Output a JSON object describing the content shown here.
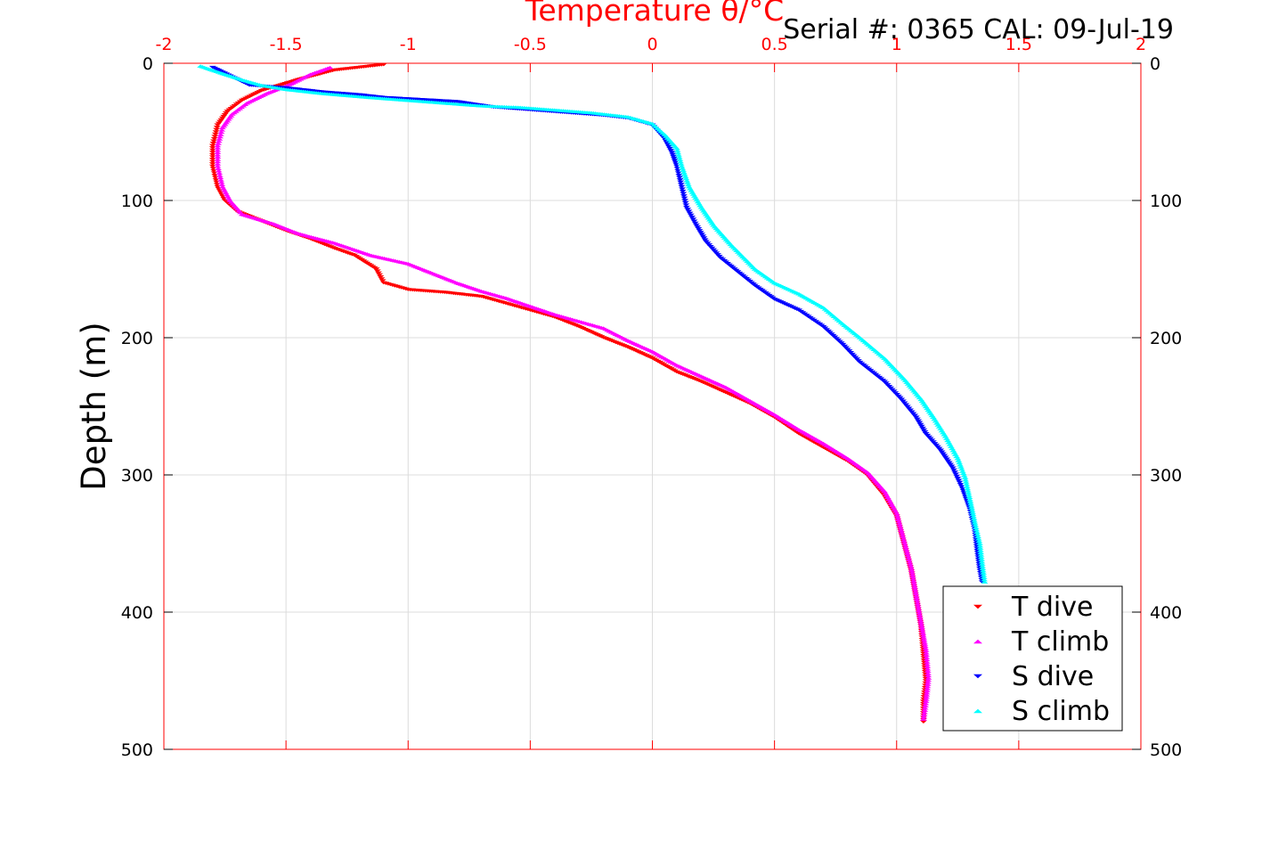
{
  "chart_data": {
    "type": "scatter",
    "title": "Temperature θ/°C",
    "subtitle": "Serial #: 0365  CAL: 09-Jul-19",
    "xlabel": "Temperature θ/°C",
    "ylabel": "Depth (m)",
    "xlim": [
      -2,
      2
    ],
    "ylim": [
      0,
      500
    ],
    "y_reversed": true,
    "grid": true,
    "legend_position": "bottom-right",
    "x_ticks": [
      "-2",
      "-1.5",
      "-1",
      "-0.5",
      "0",
      "0.5",
      "1",
      "1.5",
      "2"
    ],
    "y_ticks": [
      "0",
      "100",
      "200",
      "300",
      "400",
      "500"
    ],
    "series": [
      {
        "name": "T dive",
        "marker": "triangle-down",
        "color": "#ff0000",
        "points": [
          [
            -1.1,
            1
          ],
          [
            -1.3,
            5
          ],
          [
            -1.45,
            12
          ],
          [
            -1.6,
            20
          ],
          [
            -1.68,
            27
          ],
          [
            -1.74,
            35
          ],
          [
            -1.78,
            45
          ],
          [
            -1.8,
            60
          ],
          [
            -1.8,
            75
          ],
          [
            -1.78,
            90
          ],
          [
            -1.75,
            100
          ],
          [
            -1.7,
            108
          ],
          [
            -1.6,
            115
          ],
          [
            -1.5,
            122
          ],
          [
            -1.4,
            128
          ],
          [
            -1.3,
            135
          ],
          [
            -1.22,
            140
          ],
          [
            -1.13,
            150
          ],
          [
            -1.1,
            160
          ],
          [
            -1.0,
            165
          ],
          [
            -0.85,
            167
          ],
          [
            -0.7,
            170
          ],
          [
            -0.6,
            175
          ],
          [
            -0.5,
            180
          ],
          [
            -0.4,
            185
          ],
          [
            -0.3,
            192
          ],
          [
            -0.2,
            200
          ],
          [
            -0.1,
            207
          ],
          [
            0.0,
            215
          ],
          [
            0.1,
            225
          ],
          [
            0.2,
            232
          ],
          [
            0.3,
            240
          ],
          [
            0.4,
            248
          ],
          [
            0.5,
            258
          ],
          [
            0.6,
            270
          ],
          [
            0.7,
            280
          ],
          [
            0.8,
            290
          ],
          [
            0.88,
            300
          ],
          [
            0.95,
            315
          ],
          [
            1.0,
            330
          ],
          [
            1.03,
            350
          ],
          [
            1.06,
            370
          ],
          [
            1.08,
            390
          ],
          [
            1.1,
            410
          ],
          [
            1.11,
            430
          ],
          [
            1.12,
            450
          ],
          [
            1.11,
            465
          ],
          [
            1.11,
            480
          ]
        ]
      },
      {
        "name": "T climb",
        "marker": "triangle-up",
        "color": "#ff00ff",
        "points": [
          [
            -1.32,
            3
          ],
          [
            -1.4,
            8
          ],
          [
            -1.48,
            15
          ],
          [
            -1.58,
            22
          ],
          [
            -1.66,
            29
          ],
          [
            -1.72,
            37
          ],
          [
            -1.76,
            47
          ],
          [
            -1.78,
            60
          ],
          [
            -1.78,
            75
          ],
          [
            -1.76,
            90
          ],
          [
            -1.73,
            100
          ],
          [
            -1.68,
            110
          ],
          [
            -1.55,
            117
          ],
          [
            -1.45,
            124
          ],
          [
            -1.3,
            131
          ],
          [
            -1.15,
            140
          ],
          [
            -1.0,
            146
          ],
          [
            -0.9,
            153
          ],
          [
            -0.8,
            160
          ],
          [
            -0.7,
            166
          ],
          [
            -0.6,
            171
          ],
          [
            -0.5,
            177
          ],
          [
            -0.4,
            183
          ],
          [
            -0.3,
            188
          ],
          [
            -0.2,
            193
          ],
          [
            -0.1,
            202
          ],
          [
            0.0,
            210
          ],
          [
            0.1,
            220
          ],
          [
            0.2,
            228
          ],
          [
            0.3,
            236
          ],
          [
            0.4,
            246
          ],
          [
            0.5,
            256
          ],
          [
            0.6,
            267
          ],
          [
            0.7,
            277
          ],
          [
            0.8,
            288
          ],
          [
            0.88,
            298
          ],
          [
            0.95,
            312
          ],
          [
            1.0,
            328
          ],
          [
            1.03,
            348
          ],
          [
            1.06,
            368
          ],
          [
            1.08,
            388
          ],
          [
            1.1,
            408
          ],
          [
            1.12,
            428
          ],
          [
            1.13,
            448
          ],
          [
            1.12,
            465
          ],
          [
            1.11,
            478
          ]
        ]
      },
      {
        "name": "S dive",
        "marker": "triangle-down",
        "color": "#0000ff",
        "points": [
          [
            -1.8,
            3
          ],
          [
            -1.72,
            10
          ],
          [
            -1.65,
            16
          ],
          [
            -1.5,
            18
          ],
          [
            -1.35,
            21
          ],
          [
            -1.2,
            23
          ],
          [
            -1.1,
            25
          ],
          [
            -0.9,
            27
          ],
          [
            -0.8,
            28
          ],
          [
            -0.65,
            32
          ],
          [
            -0.5,
            34
          ],
          [
            -0.35,
            36
          ],
          [
            -0.2,
            38
          ],
          [
            -0.1,
            40
          ],
          [
            0.0,
            45
          ],
          [
            0.05,
            55
          ],
          [
            0.08,
            65
          ],
          [
            0.1,
            75
          ],
          [
            0.12,
            90
          ],
          [
            0.14,
            105
          ],
          [
            0.18,
            118
          ],
          [
            0.22,
            130
          ],
          [
            0.28,
            142
          ],
          [
            0.35,
            152
          ],
          [
            0.42,
            162
          ],
          [
            0.5,
            172
          ],
          [
            0.6,
            180
          ],
          [
            0.7,
            192
          ],
          [
            0.78,
            205
          ],
          [
            0.85,
            218
          ],
          [
            0.95,
            232
          ],
          [
            1.02,
            245
          ],
          [
            1.08,
            258
          ],
          [
            1.12,
            270
          ],
          [
            1.18,
            282
          ],
          [
            1.23,
            295
          ],
          [
            1.27,
            310
          ],
          [
            1.3,
            325
          ],
          [
            1.32,
            340
          ],
          [
            1.33,
            355
          ],
          [
            1.34,
            368
          ],
          [
            1.35,
            378
          ]
        ]
      },
      {
        "name": "S climb",
        "marker": "triangle-up",
        "color": "#00ffff",
        "points": [
          [
            -1.85,
            2
          ],
          [
            -1.8,
            5
          ],
          [
            -1.75,
            8
          ],
          [
            -1.68,
            12
          ],
          [
            -1.6,
            16
          ],
          [
            -1.5,
            19
          ],
          [
            -1.35,
            22
          ],
          [
            -1.15,
            25
          ],
          [
            -1.0,
            27
          ],
          [
            -0.85,
            29
          ],
          [
            -0.7,
            31
          ],
          [
            -0.55,
            32
          ],
          [
            -0.4,
            34
          ],
          [
            -0.25,
            36
          ],
          [
            -0.1,
            39
          ],
          [
            0.0,
            44
          ],
          [
            0.05,
            52
          ],
          [
            0.1,
            62
          ],
          [
            0.12,
            75
          ],
          [
            0.15,
            90
          ],
          [
            0.2,
            105
          ],
          [
            0.25,
            118
          ],
          [
            0.32,
            132
          ],
          [
            0.42,
            150
          ],
          [
            0.5,
            160
          ],
          [
            0.6,
            168
          ],
          [
            0.7,
            178
          ],
          [
            0.78,
            190
          ],
          [
            0.85,
            200
          ],
          [
            0.95,
            215
          ],
          [
            1.03,
            230
          ],
          [
            1.1,
            245
          ],
          [
            1.15,
            258
          ],
          [
            1.2,
            272
          ],
          [
            1.25,
            288
          ],
          [
            1.28,
            302
          ],
          [
            1.3,
            318
          ],
          [
            1.32,
            335
          ],
          [
            1.34,
            350
          ],
          [
            1.35,
            365
          ],
          [
            1.36,
            378
          ]
        ]
      }
    ]
  }
}
